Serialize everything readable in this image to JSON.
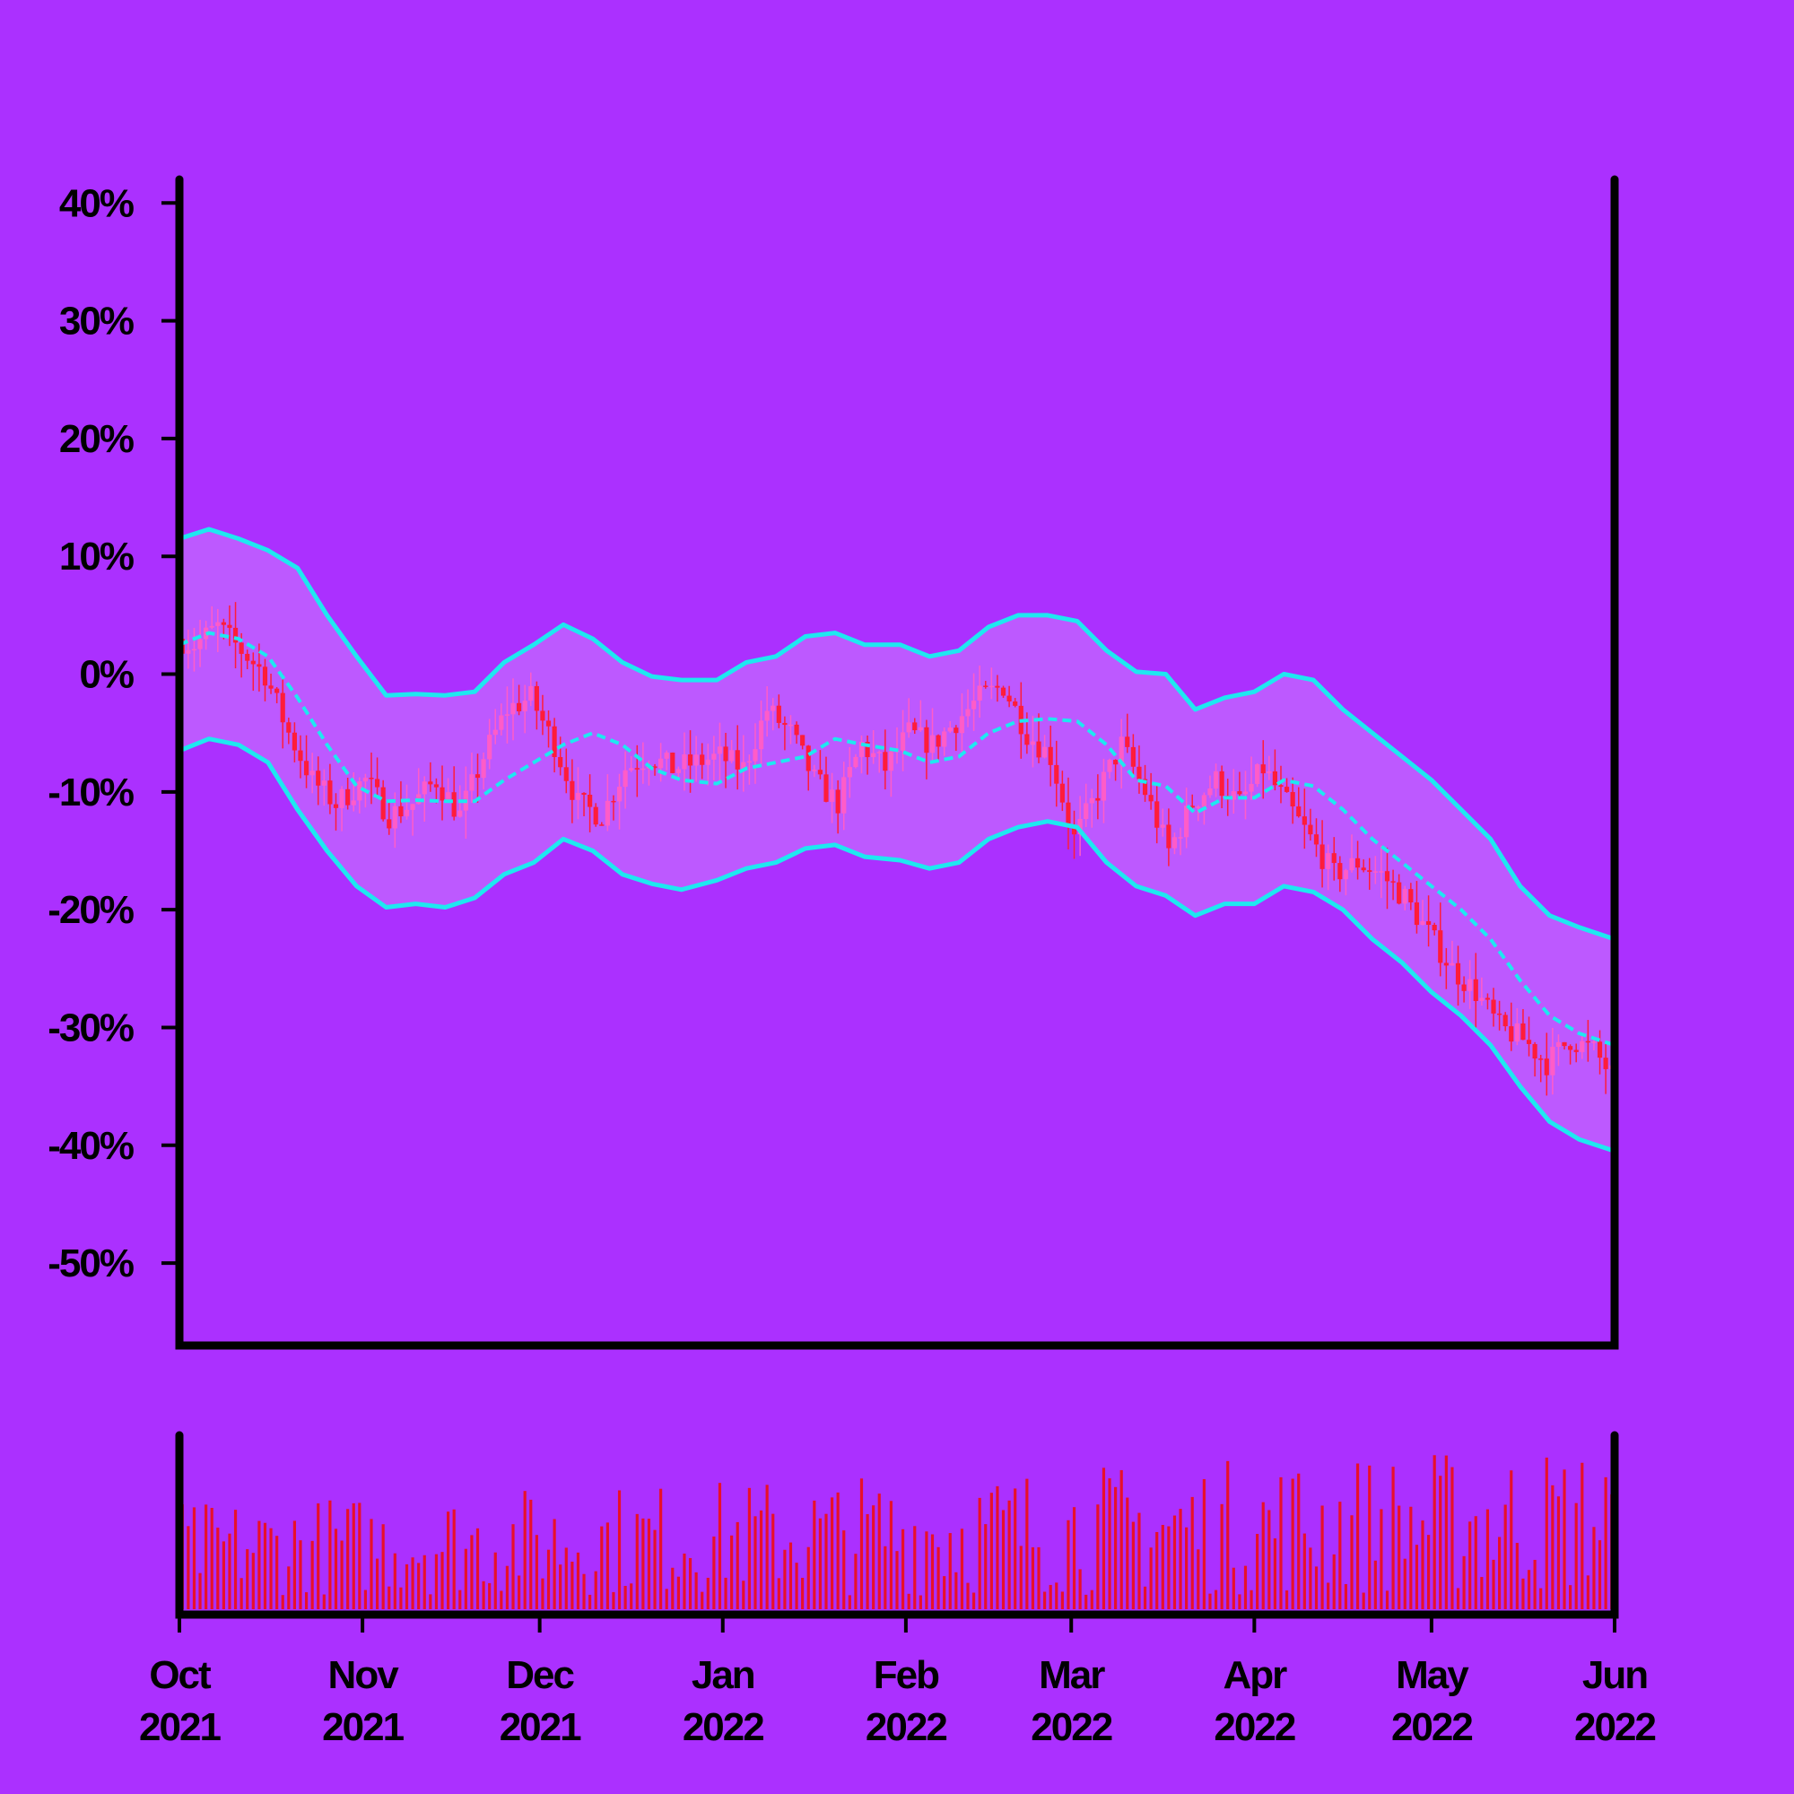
{
  "chart_data": {
    "type": "candlestick-with-bollinger-and-volume",
    "title": "",
    "xlabel": "",
    "ylabel": "",
    "y_unit": "%",
    "ylim": [
      -57,
      42
    ],
    "y_ticks": [
      {
        "value": 40,
        "label": "40%"
      },
      {
        "value": 30,
        "label": "30%"
      },
      {
        "value": 20,
        "label": "20%"
      },
      {
        "value": 10,
        "label": "10%"
      },
      {
        "value": 0,
        "label": "0%"
      },
      {
        "value": -10,
        "label": "-10%"
      },
      {
        "value": -20,
        "label": "-20%"
      },
      {
        "value": -30,
        "label": "-30%"
      },
      {
        "value": -40,
        "label": "-40%"
      },
      {
        "value": -50,
        "label": "-50%"
      }
    ],
    "x_range": [
      "2021-10-01",
      "2022-06-01"
    ],
    "x_ticks": [
      {
        "date": "2021-10-01",
        "month": "Oct",
        "year": "2021"
      },
      {
        "date": "2021-11-01",
        "month": "Nov",
        "year": "2021"
      },
      {
        "date": "2021-12-01",
        "month": "Dec",
        "year": "2021"
      },
      {
        "date": "2022-01-01",
        "month": "Jan",
        "year": "2022"
      },
      {
        "date": "2022-02-01",
        "month": "Feb",
        "year": "2022"
      },
      {
        "date": "2022-03-01",
        "month": "Mar",
        "year": "2022"
      },
      {
        "date": "2022-04-01",
        "month": "Apr",
        "year": "2022"
      },
      {
        "date": "2022-05-01",
        "month": "May",
        "year": "2022"
      },
      {
        "date": "2022-06-01",
        "month": "Jun",
        "year": "2022"
      }
    ],
    "price_close_path": [
      [
        "2021-10-01",
        3
      ],
      [
        "2021-10-04",
        2.5
      ],
      [
        "2021-10-08",
        4
      ],
      [
        "2021-10-12",
        2
      ],
      [
        "2021-10-16",
        0
      ],
      [
        "2021-10-20",
        -5
      ],
      [
        "2021-10-24",
        -9
      ],
      [
        "2021-10-28",
        -11
      ],
      [
        "2021-11-02",
        -9
      ],
      [
        "2021-11-06",
        -12
      ],
      [
        "2021-11-10",
        -11
      ],
      [
        "2021-11-14",
        -9
      ],
      [
        "2021-11-18",
        -12
      ],
      [
        "2021-11-22",
        -7
      ],
      [
        "2021-11-26",
        -3
      ],
      [
        "2021-11-30",
        -2
      ],
      [
        "2021-12-04",
        -6
      ],
      [
        "2021-12-08",
        -11
      ],
      [
        "2021-12-12",
        -12
      ],
      [
        "2021-12-16",
        -8
      ],
      [
        "2021-12-20",
        -7
      ],
      [
        "2021-12-24",
        -8
      ],
      [
        "2021-12-28",
        -7.5
      ],
      [
        "2022-01-01",
        -7
      ],
      [
        "2022-01-05",
        -8
      ],
      [
        "2022-01-09",
        -3
      ],
      [
        "2022-01-13",
        -5
      ],
      [
        "2022-01-17",
        -9
      ],
      [
        "2022-01-21",
        -11
      ],
      [
        "2022-01-25",
        -6
      ],
      [
        "2022-01-29",
        -8
      ],
      [
        "2022-02-02",
        -5
      ],
      [
        "2022-02-06",
        -6
      ],
      [
        "2022-02-10",
        -4
      ],
      [
        "2022-02-14",
        -2
      ],
      [
        "2022-02-18",
        -1
      ],
      [
        "2022-02-22",
        -5
      ],
      [
        "2022-02-26",
        -7
      ],
      [
        "2022-03-02",
        -14
      ],
      [
        "2022-03-06",
        -10
      ],
      [
        "2022-03-10",
        -6
      ],
      [
        "2022-03-14",
        -10
      ],
      [
        "2022-03-18",
        -15
      ],
      [
        "2022-03-22",
        -11
      ],
      [
        "2022-03-26",
        -9
      ],
      [
        "2022-03-30",
        -11
      ],
      [
        "2022-04-03",
        -8
      ],
      [
        "2022-04-07",
        -11
      ],
      [
        "2022-04-11",
        -14
      ],
      [
        "2022-04-15",
        -17
      ],
      [
        "2022-04-19",
        -16
      ],
      [
        "2022-04-23",
        -17
      ],
      [
        "2022-04-27",
        -19
      ],
      [
        "2022-05-01",
        -22
      ],
      [
        "2022-05-05",
        -25
      ],
      [
        "2022-05-09",
        -27
      ],
      [
        "2022-05-13",
        -30
      ],
      [
        "2022-05-17",
        -31
      ],
      [
        "2022-05-21",
        -33
      ],
      [
        "2022-05-25",
        -31
      ],
      [
        "2022-05-29",
        -32
      ],
      [
        "2022-06-01",
        -34
      ]
    ],
    "bollinger_mid": [
      [
        "2021-10-01",
        2.5
      ],
      [
        "2021-10-06",
        3.5
      ],
      [
        "2021-10-11",
        3
      ],
      [
        "2021-10-16",
        1.5
      ],
      [
        "2021-10-21",
        -2
      ],
      [
        "2021-10-26",
        -6
      ],
      [
        "2021-10-31",
        -9.5
      ],
      [
        "2021-11-05",
        -10.8
      ],
      [
        "2021-11-10",
        -10.7
      ],
      [
        "2021-11-15",
        -10.8
      ],
      [
        "2021-11-20",
        -10.8
      ],
      [
        "2021-11-25",
        -9
      ],
      [
        "2021-11-30",
        -7.5
      ],
      [
        "2021-12-05",
        -6
      ],
      [
        "2021-12-10",
        -5
      ],
      [
        "2021-12-15",
        -6
      ],
      [
        "2021-12-20",
        -8
      ],
      [
        "2021-12-25",
        -9
      ],
      [
        "2021-12-31",
        -9.3
      ],
      [
        "2022-01-05",
        -8
      ],
      [
        "2022-01-10",
        -7.5
      ],
      [
        "2022-01-15",
        -7
      ],
      [
        "2022-01-20",
        -5.5
      ],
      [
        "2022-01-25",
        -6
      ],
      [
        "2022-01-31",
        -6.5
      ],
      [
        "2022-02-05",
        -7.5
      ],
      [
        "2022-02-10",
        -7
      ],
      [
        "2022-02-15",
        -5
      ],
      [
        "2022-02-20",
        -4
      ],
      [
        "2022-02-25",
        -3.8
      ],
      [
        "2022-03-02",
        -4
      ],
      [
        "2022-03-07",
        -6
      ],
      [
        "2022-03-12",
        -9
      ],
      [
        "2022-03-17",
        -9.5
      ],
      [
        "2022-03-22",
        -11.8
      ],
      [
        "2022-03-27",
        -10.5
      ],
      [
        "2022-04-01",
        -10.5
      ],
      [
        "2022-04-06",
        -9
      ],
      [
        "2022-04-11",
        -9.5
      ],
      [
        "2022-04-16",
        -11.5
      ],
      [
        "2022-04-21",
        -14
      ],
      [
        "2022-04-26",
        -16
      ],
      [
        "2022-05-01",
        -18
      ],
      [
        "2022-05-06",
        -20
      ],
      [
        "2022-05-11",
        -22.5
      ],
      [
        "2022-05-16",
        -26
      ],
      [
        "2022-05-21",
        -29
      ],
      [
        "2022-05-26",
        -30.5
      ],
      [
        "2022-06-01",
        -31.5
      ]
    ],
    "bollinger_upper": [
      [
        "2021-10-01",
        11.5
      ],
      [
        "2021-10-06",
        12.3
      ],
      [
        "2021-10-11",
        11.5
      ],
      [
        "2021-10-16",
        10.5
      ],
      [
        "2021-10-21",
        9
      ],
      [
        "2021-10-26",
        5
      ],
      [
        "2021-10-31",
        1.5
      ],
      [
        "2021-11-05",
        -1.8
      ],
      [
        "2021-11-10",
        -1.7
      ],
      [
        "2021-11-15",
        -1.8
      ],
      [
        "2021-11-20",
        -1.5
      ],
      [
        "2021-11-25",
        1
      ],
      [
        "2021-11-30",
        2.5
      ],
      [
        "2021-12-05",
        4.2
      ],
      [
        "2021-12-10",
        3
      ],
      [
        "2021-12-15",
        1
      ],
      [
        "2021-12-20",
        -0.2
      ],
      [
        "2021-12-25",
        -0.5
      ],
      [
        "2021-12-31",
        -0.5
      ],
      [
        "2022-01-05",
        1
      ],
      [
        "2022-01-10",
        1.5
      ],
      [
        "2022-01-15",
        3.2
      ],
      [
        "2022-01-20",
        3.5
      ],
      [
        "2022-01-25",
        2.5
      ],
      [
        "2022-01-31",
        2.5
      ],
      [
        "2022-02-05",
        1.5
      ],
      [
        "2022-02-10",
        2
      ],
      [
        "2022-02-15",
        4
      ],
      [
        "2022-02-20",
        5
      ],
      [
        "2022-02-25",
        5
      ],
      [
        "2022-03-02",
        4.5
      ],
      [
        "2022-03-07",
        2
      ],
      [
        "2022-03-12",
        0.2
      ],
      [
        "2022-03-17",
        0
      ],
      [
        "2022-03-22",
        -3
      ],
      [
        "2022-03-27",
        -2
      ],
      [
        "2022-04-01",
        -1.5
      ],
      [
        "2022-04-06",
        0
      ],
      [
        "2022-04-11",
        -0.5
      ],
      [
        "2022-04-16",
        -3
      ],
      [
        "2022-04-21",
        -5
      ],
      [
        "2022-04-26",
        -7
      ],
      [
        "2022-05-01",
        -9
      ],
      [
        "2022-05-06",
        -11.5
      ],
      [
        "2022-05-11",
        -14
      ],
      [
        "2022-05-16",
        -18
      ],
      [
        "2022-05-21",
        -20.5
      ],
      [
        "2022-05-26",
        -21.5
      ],
      [
        "2022-06-01",
        -22.5
      ]
    ],
    "bollinger_lower": [
      [
        "2021-10-01",
        -6.5
      ],
      [
        "2021-10-06",
        -5.5
      ],
      [
        "2021-10-11",
        -6
      ],
      [
        "2021-10-16",
        -7.5
      ],
      [
        "2021-10-21",
        -11.5
      ],
      [
        "2021-10-26",
        -15
      ],
      [
        "2021-10-31",
        -18
      ],
      [
        "2021-11-05",
        -19.8
      ],
      [
        "2021-11-10",
        -19.5
      ],
      [
        "2021-11-15",
        -19.8
      ],
      [
        "2021-11-20",
        -19
      ],
      [
        "2021-11-25",
        -17
      ],
      [
        "2021-11-30",
        -16
      ],
      [
        "2021-12-05",
        -14
      ],
      [
        "2021-12-10",
        -15
      ],
      [
        "2021-12-15",
        -17
      ],
      [
        "2021-12-20",
        -17.8
      ],
      [
        "2021-12-25",
        -18.3
      ],
      [
        "2021-12-31",
        -17.5
      ],
      [
        "2022-01-05",
        -16.5
      ],
      [
        "2022-01-10",
        -16
      ],
      [
        "2022-01-15",
        -14.8
      ],
      [
        "2022-01-20",
        -14.5
      ],
      [
        "2022-01-25",
        -15.5
      ],
      [
        "2022-01-31",
        -15.8
      ],
      [
        "2022-02-05",
        -16.5
      ],
      [
        "2022-02-10",
        -16
      ],
      [
        "2022-02-15",
        -14
      ],
      [
        "2022-02-20",
        -13
      ],
      [
        "2022-02-25",
        -12.5
      ],
      [
        "2022-03-02",
        -13
      ],
      [
        "2022-03-07",
        -16
      ],
      [
        "2022-03-12",
        -18
      ],
      [
        "2022-03-17",
        -18.8
      ],
      [
        "2022-03-22",
        -20.5
      ],
      [
        "2022-03-27",
        -19.5
      ],
      [
        "2022-04-01",
        -19.5
      ],
      [
        "2022-04-06",
        -18
      ],
      [
        "2022-04-11",
        -18.5
      ],
      [
        "2022-04-16",
        -20
      ],
      [
        "2022-04-21",
        -22.5
      ],
      [
        "2022-04-26",
        -24.5
      ],
      [
        "2022-05-01",
        -27
      ],
      [
        "2022-05-06",
        -29
      ],
      [
        "2022-05-11",
        -31.5
      ],
      [
        "2022-05-16",
        -35
      ],
      [
        "2022-05-21",
        -38
      ],
      [
        "2022-05-26",
        -39.5
      ],
      [
        "2022-06-01",
        -40.5
      ]
    ],
    "colors": {
      "background": "#ab30ff",
      "candle_up": "#ff5cc8",
      "candle_down": "#ff1c3a",
      "band_line": "#1ee8f0",
      "band_fill": "#c060ff",
      "volume": "#e8102a",
      "axis": "#000000"
    },
    "grid": false,
    "legend": "none"
  }
}
